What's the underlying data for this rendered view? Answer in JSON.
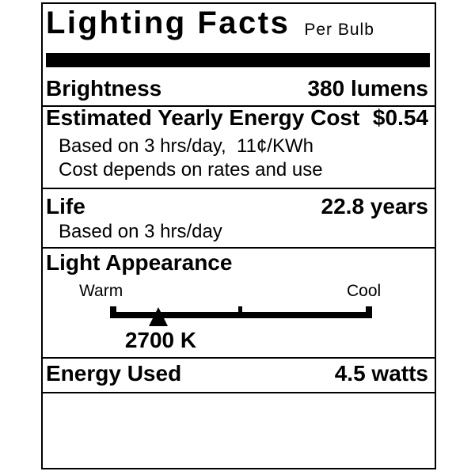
{
  "label": {
    "title": "Lighting Facts",
    "subtitle": "Per Bulb",
    "brightness": {
      "label": "Brightness",
      "value": "380 lumens"
    },
    "energy_cost": {
      "label": "Estimated Yearly Energy Cost",
      "value": "$0.54",
      "note_rate": "Based on 3 hrs/day,  11¢/KWh",
      "note_disclaimer": "Cost depends on rates and use"
    },
    "life": {
      "label": "Life",
      "value": "22.8 years",
      "note": "Based on 3 hrs/day"
    },
    "light_appearance": {
      "label": "Light Appearance",
      "scale_left": "Warm",
      "scale_right": "Cool",
      "color_temperature": "2700 K"
    },
    "energy_used": {
      "label": "Energy Used",
      "value": "4.5 watts"
    },
    "colors": {
      "ink": "#000000",
      "paper": "#ffffff"
    }
  }
}
